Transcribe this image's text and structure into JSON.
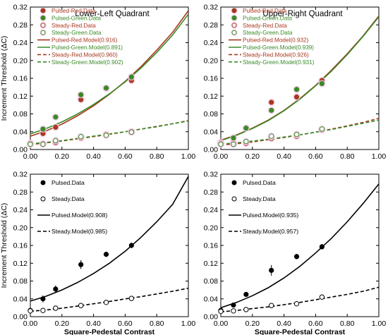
{
  "figure": {
    "shared_xlabel": "Square-Pedestal Contrast",
    "colors": {
      "red": "#a8381e",
      "green": "#3a8a28",
      "black": "#000000",
      "pink_halo": "#f4c8e6"
    }
  },
  "chart_data": [
    {
      "type": "scatter",
      "title": "Lower-Left Quadrant",
      "xlabel": "",
      "ylabel": "Increment Threshold (ΔC)",
      "xlim": [
        0,
        1
      ],
      "ylim": [
        0,
        0.32
      ],
      "xticks": [
        "0.00",
        "0.20",
        "0.40",
        "0.60",
        "0.80",
        "1.00"
      ],
      "yticks": [
        "0.00",
        "0.04",
        "0.08",
        "0.12",
        "0.16",
        "0.20",
        "0.24",
        "0.28",
        "0.32"
      ],
      "grid": false,
      "legend_position": "top-left",
      "series": [
        {
          "name": "Pulsed-Red.Data",
          "kind": "points",
          "marker": "filled",
          "color": "#a8381e",
          "x": [
            0.0,
            0.08,
            0.16,
            0.32,
            0.48,
            0.64
          ],
          "y": [
            0.014,
            0.036,
            0.05,
            0.112,
            0.138,
            0.155
          ]
        },
        {
          "name": "Pulsed-Green.Data",
          "kind": "points",
          "marker": "filled",
          "color": "#3a8a28",
          "x": [
            0.0,
            0.08,
            0.16,
            0.32,
            0.48,
            0.64
          ],
          "y": [
            0.014,
            0.046,
            0.073,
            0.123,
            0.138,
            0.163
          ]
        },
        {
          "name": "Steady-Red.Data",
          "kind": "points",
          "marker": "open",
          "color": "#a8381e",
          "x": [
            0.0,
            0.08,
            0.16,
            0.32,
            0.48,
            0.64
          ],
          "y": [
            0.013,
            0.013,
            0.016,
            0.026,
            0.034,
            0.04
          ]
        },
        {
          "name": "Steady-Green.Data",
          "kind": "points",
          "marker": "open",
          "color": "#3a8a28",
          "x": [
            0.0,
            0.08,
            0.16,
            0.32,
            0.48,
            0.64
          ],
          "y": [
            0.012,
            0.012,
            0.02,
            0.029,
            0.032,
            0.039
          ]
        },
        {
          "name": "Pulsed-Red.Model",
          "r2": "(0.916)",
          "kind": "line",
          "dash": false,
          "color": "#a8381e",
          "x": [
            0,
            0.1,
            0.2,
            0.3,
            0.4,
            0.5,
            0.6,
            0.7,
            0.8,
            0.9,
            1.0
          ],
          "y": [
            0.03,
            0.042,
            0.057,
            0.076,
            0.098,
            0.124,
            0.153,
            0.186,
            0.223,
            0.263,
            0.312
          ]
        },
        {
          "name": "Pulsed-Green.Model",
          "r2": "(0.891)",
          "kind": "line",
          "dash": false,
          "color": "#3a8a28",
          "x": [
            0,
            0.1,
            0.2,
            0.3,
            0.4,
            0.5,
            0.6,
            0.7,
            0.8,
            0.9,
            1.0
          ],
          "y": [
            0.035,
            0.047,
            0.062,
            0.08,
            0.101,
            0.125,
            0.152,
            0.183,
            0.218,
            0.257,
            0.304
          ]
        },
        {
          "name": "Steady-Red.Model",
          "r2": "(0.960)",
          "kind": "line",
          "dash": true,
          "color": "#a8381e",
          "x": [
            0,
            0.1,
            0.2,
            0.3,
            0.4,
            0.5,
            0.6,
            0.7,
            0.8,
            0.9,
            1.0
          ],
          "y": [
            0.011,
            0.015,
            0.019,
            0.024,
            0.029,
            0.034,
            0.04,
            0.046,
            0.052,
            0.058,
            0.065
          ]
        },
        {
          "name": "Steady-Green.Model",
          "r2": "(0.902)",
          "kind": "line",
          "dash": true,
          "color": "#3a8a28",
          "x": [
            0,
            0.1,
            0.2,
            0.3,
            0.4,
            0.5,
            0.6,
            0.7,
            0.8,
            0.9,
            1.0
          ],
          "y": [
            0.013,
            0.016,
            0.02,
            0.025,
            0.03,
            0.035,
            0.04,
            0.046,
            0.051,
            0.058,
            0.064
          ]
        }
      ]
    },
    {
      "type": "scatter",
      "title": "Upper-Right Quadrant",
      "xlabel": "",
      "ylabel": "",
      "xlim": [
        0,
        1
      ],
      "ylim": [
        0,
        0.32
      ],
      "xticks": [
        "0.00",
        "0.20",
        "0.40",
        "0.60",
        "0.80",
        "1.00"
      ],
      "yticks": [
        "0.00",
        "0.04",
        "0.08",
        "0.12",
        "0.16",
        "0.20",
        "0.24",
        "0.28",
        "0.32"
      ],
      "grid": false,
      "legend_position": "top-left",
      "series": [
        {
          "name": "Pulsed-Red.Data",
          "kind": "points",
          "marker": "filled",
          "color": "#a8381e",
          "x": [
            0.0,
            0.08,
            0.16,
            0.32,
            0.48,
            0.64
          ],
          "y": [
            0.016,
            0.016,
            0.048,
            0.106,
            0.118,
            0.155
          ]
        },
        {
          "name": "Pulsed-Green.Data",
          "kind": "points",
          "marker": "filled",
          "color": "#3a8a28",
          "x": [
            0.0,
            0.08,
            0.16,
            0.32,
            0.48,
            0.64
          ],
          "y": [
            0.013,
            0.026,
            0.048,
            0.088,
            0.135,
            0.148
          ]
        },
        {
          "name": "Steady-Red.Data",
          "kind": "points",
          "marker": "open",
          "color": "#a8381e",
          "x": [
            0.0,
            0.08,
            0.16,
            0.32,
            0.48,
            0.64
          ],
          "y": [
            0.013,
            0.012,
            0.014,
            0.025,
            0.03,
            0.044
          ]
        },
        {
          "name": "Steady-Green.Data",
          "kind": "points",
          "marker": "open",
          "color": "#3a8a28",
          "x": [
            0.0,
            0.08,
            0.16,
            0.32,
            0.48,
            0.64
          ],
          "y": [
            0.012,
            0.012,
            0.018,
            0.03,
            0.034,
            0.046
          ]
        },
        {
          "name": "Pulsed-Red.Model",
          "r2": "(0.932)",
          "kind": "line",
          "dash": false,
          "color": "#a8381e",
          "x": [
            0,
            0.1,
            0.2,
            0.3,
            0.4,
            0.5,
            0.6,
            0.7,
            0.8,
            0.9,
            1.0
          ],
          "y": [
            0.021,
            0.033,
            0.048,
            0.066,
            0.088,
            0.114,
            0.144,
            0.178,
            0.215,
            0.255,
            0.3
          ]
        },
        {
          "name": "Pulsed-Green.Model",
          "r2": "(0.939)",
          "kind": "line",
          "dash": false,
          "color": "#3a8a28",
          "x": [
            0,
            0.1,
            0.2,
            0.3,
            0.4,
            0.5,
            0.6,
            0.7,
            0.8,
            0.9,
            1.0
          ],
          "y": [
            0.02,
            0.032,
            0.047,
            0.065,
            0.087,
            0.113,
            0.143,
            0.176,
            0.213,
            0.254,
            0.298
          ]
        },
        {
          "name": "Steady-Red.Model",
          "r2": "(0.926)",
          "kind": "line",
          "dash": true,
          "color": "#a8381e",
          "x": [
            0,
            0.1,
            0.2,
            0.3,
            0.4,
            0.5,
            0.6,
            0.7,
            0.8,
            0.9,
            1.0
          ],
          "y": [
            0.01,
            0.013,
            0.017,
            0.022,
            0.027,
            0.033,
            0.039,
            0.046,
            0.053,
            0.061,
            0.07
          ]
        },
        {
          "name": "Steady-Green.Model",
          "r2": "(0.931)",
          "kind": "line",
          "dash": true,
          "color": "#3a8a28",
          "x": [
            0,
            0.1,
            0.2,
            0.3,
            0.4,
            0.5,
            0.6,
            0.7,
            0.8,
            0.9,
            1.0
          ],
          "y": [
            0.012,
            0.015,
            0.019,
            0.023,
            0.028,
            0.033,
            0.039,
            0.045,
            0.052,
            0.059,
            0.066
          ]
        }
      ]
    },
    {
      "type": "scatter",
      "title": "",
      "xlabel": "Square-Pedestal Contrast",
      "ylabel": "Increment Threshold (ΔC)",
      "xlim": [
        0,
        1
      ],
      "ylim": [
        0,
        0.32
      ],
      "xticks": [
        "0.00",
        "0.20",
        "0.40",
        "0.60",
        "0.80",
        "1.00"
      ],
      "yticks": [
        "0.00",
        "0.04",
        "0.08",
        "0.12",
        "0.16",
        "0.20",
        "0.24",
        "0.28",
        "0.32"
      ],
      "grid": false,
      "legend_position": "top-left",
      "series": [
        {
          "name": "Pulsed.Data",
          "kind": "points",
          "marker": "filled",
          "color": "#000000",
          "x": [
            0.0,
            0.08,
            0.16,
            0.32,
            0.48,
            0.64
          ],
          "y": [
            0.014,
            0.04,
            0.062,
            0.117,
            0.14,
            0.16
          ],
          "err": [
            0.004,
            0.008,
            0.008,
            0.01,
            0.006,
            0.006
          ]
        },
        {
          "name": "Steady.Data",
          "kind": "points",
          "marker": "open",
          "color": "#000000",
          "x": [
            0.0,
            0.08,
            0.16,
            0.32,
            0.48,
            0.64
          ],
          "y": [
            0.013,
            0.014,
            0.019,
            0.025,
            0.032,
            0.041
          ],
          "err": [
            0.002,
            0.002,
            0.002,
            0.002,
            0.003,
            0.004
          ]
        },
        {
          "name": "Pulsed.Model",
          "r2": "(0.908)",
          "kind": "line",
          "dash": false,
          "color": "#000000",
          "x": [
            0,
            0.1,
            0.2,
            0.3,
            0.4,
            0.5,
            0.6,
            0.7,
            0.8,
            0.9,
            1.0
          ],
          "y": [
            0.035,
            0.046,
            0.06,
            0.077,
            0.097,
            0.12,
            0.147,
            0.178,
            0.213,
            0.252,
            0.315
          ]
        },
        {
          "name": "Steady.Model",
          "r2": "(0.985)",
          "kind": "line",
          "dash": true,
          "color": "#000000",
          "x": [
            0,
            0.1,
            0.2,
            0.3,
            0.4,
            0.5,
            0.6,
            0.7,
            0.8,
            0.9,
            1.0
          ],
          "y": [
            0.012,
            0.015,
            0.019,
            0.024,
            0.029,
            0.034,
            0.04,
            0.045,
            0.051,
            0.057,
            0.064
          ]
        }
      ]
    },
    {
      "type": "scatter",
      "title": "",
      "xlabel": "Square-Pedestal Contrast",
      "ylabel": "",
      "xlim": [
        0,
        1
      ],
      "ylim": [
        0,
        0.32
      ],
      "xticks": [
        "0.00",
        "0.20",
        "0.40",
        "0.60",
        "0.80",
        "1.00"
      ],
      "yticks": [
        "0.00",
        "0.04",
        "0.08",
        "0.12",
        "0.16",
        "0.20",
        "0.24",
        "0.28",
        "0.32"
      ],
      "grid": false,
      "legend_position": "top-left",
      "series": [
        {
          "name": "Pulsed.Data",
          "kind": "points",
          "marker": "filled",
          "color": "#000000",
          "x": [
            0.0,
            0.08,
            0.16,
            0.32,
            0.48,
            0.64
          ],
          "y": [
            0.014,
            0.026,
            0.05,
            0.104,
            0.135,
            0.157
          ],
          "err": [
            0.003,
            0.004,
            0.004,
            0.012,
            0.006,
            0.006
          ]
        },
        {
          "name": "Steady.Data",
          "kind": "points",
          "marker": "open",
          "color": "#000000",
          "x": [
            0.0,
            0.08,
            0.16,
            0.32,
            0.48,
            0.64
          ],
          "y": [
            0.012,
            0.013,
            0.016,
            0.025,
            0.029,
            0.044
          ],
          "err": [
            0.002,
            0.002,
            0.002,
            0.002,
            0.002,
            0.003
          ]
        },
        {
          "name": "Pulsed.Model",
          "r2": "(0.935)",
          "kind": "line",
          "dash": false,
          "color": "#000000",
          "x": [
            0,
            0.1,
            0.2,
            0.3,
            0.4,
            0.5,
            0.6,
            0.7,
            0.8,
            0.9,
            1.0
          ],
          "y": [
            0.02,
            0.032,
            0.047,
            0.065,
            0.087,
            0.113,
            0.143,
            0.176,
            0.213,
            0.254,
            0.298
          ]
        },
        {
          "name": "Steady.Model",
          "r2": "(0.957)",
          "kind": "line",
          "dash": true,
          "color": "#000000",
          "x": [
            0,
            0.1,
            0.2,
            0.3,
            0.4,
            0.5,
            0.6,
            0.7,
            0.8,
            0.9,
            1.0
          ],
          "y": [
            0.011,
            0.014,
            0.018,
            0.022,
            0.027,
            0.032,
            0.038,
            0.044,
            0.05,
            0.057,
            0.066
          ]
        }
      ]
    }
  ]
}
